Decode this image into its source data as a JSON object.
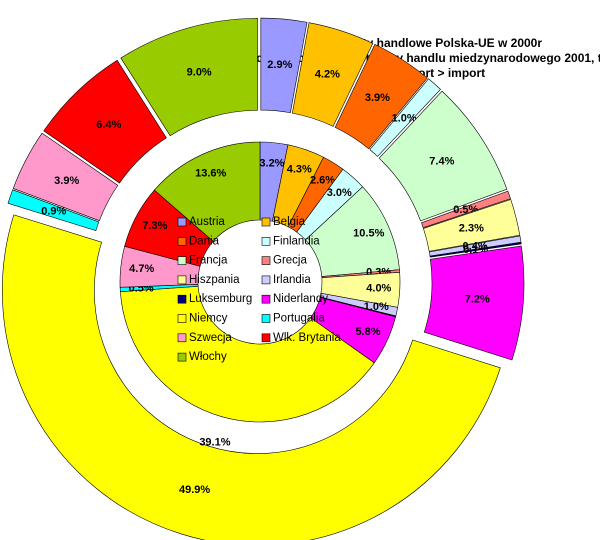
{
  "chart_data": {
    "type": "doughnut",
    "title": [
      "Obroty handlowe Polska-UE w 2000r",
      "źrodło: Rocznik statystyczny handlu miedzynarodowego 2001, t",
      "eksport > import"
    ],
    "categories": [
      "Austria",
      "Belgia",
      "Dania",
      "Finlandia",
      "Francja",
      "Grecja",
      "Hiszpania",
      "Irlandia",
      "Luksemburg",
      "Niderlandy",
      "Niemcy",
      "Portugalia",
      "Szwecja",
      "Wlk. Brytania",
      "Włochy"
    ],
    "colors": [
      "#9999ff",
      "#ffc000",
      "#ff6600",
      "#ccffff",
      "#ccffcc",
      "#ff8080",
      "#ffff99",
      "#ccccff",
      "#000080",
      "#ff00ff",
      "#ffff00",
      "#00ffff",
      "#ff99cc",
      "#ff0000",
      "#99cc00"
    ],
    "series": [
      {
        "values": [
          3.2,
          4.3,
          2.6,
          3.0,
          10.5,
          0.3,
          4.0,
          1.0,
          0.1,
          5.8,
          39.1,
          0.5,
          4.7,
          7.3,
          13.6
        ],
        "value_labels": [
          "3.2%",
          "4.3%",
          "2.6%",
          "3.0%",
          "10.5%",
          "0.3%",
          "4.0%",
          "1.0%",
          null,
          "5.8%",
          "39.1%",
          "0.5%",
          "4.7%",
          "7.3%",
          "13.6%"
        ]
      },
      {
        "values": [
          2.9,
          4.2,
          3.9,
          1.0,
          7.4,
          0.5,
          2.3,
          0.4,
          0.1,
          7.2,
          49.9,
          0.9,
          3.9,
          6.4,
          9.0
        ],
        "value_labels": [
          "2.9%",
          "4.2%",
          "3.9%",
          "1.0%",
          "7.4%",
          "0.5%",
          "2.3%",
          "0.4%",
          "0.1%",
          "7.2%",
          "49.9%",
          "0.9%",
          "3.9%",
          "6.4%",
          "9.0%"
        ]
      }
    ]
  }
}
